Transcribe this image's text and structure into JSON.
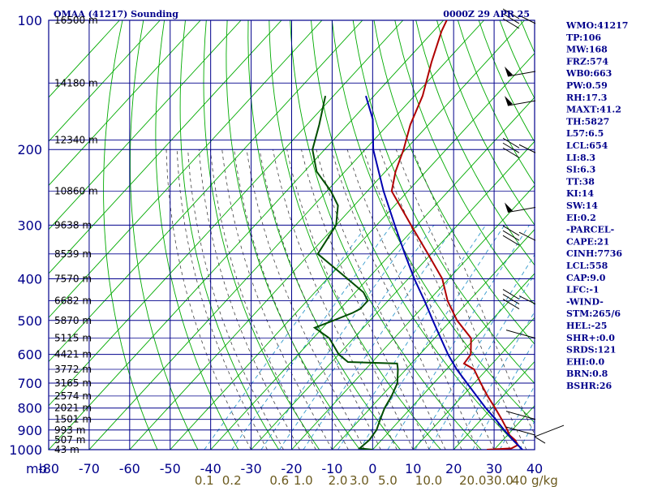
{
  "header": {
    "station": "OMAA (41217) Sounding",
    "time": "0000Z 29 APR 25"
  },
  "indices": [
    "WMO:41217",
    "TP:106",
    "MW:168",
    "FRZ:574",
    "WB0:663",
    "PW:0.59",
    "RH:17.3",
    "MAXT:41.2",
    "TH:5827",
    "L57:6.5",
    "LCL:654",
    "LI:8.3",
    "SI:6.3",
    "TT:38",
    "KI:14",
    "SW:14",
    "EI:0.2",
    "-PARCEL-",
    "CAPE:21",
    "CINH:7736",
    "LCL:558",
    "CAP:9.0",
    "LFC:-1",
    "-WIND-",
    "STM:265/6",
    "HEL:-25",
    "SHR+:0.0",
    "SRDS:121",
    "EHI:0.0",
    "BRN:0.8",
    "BSHR:26"
  ],
  "colors": {
    "grid": "#00008b",
    "dry_adiabat": "#00aa00",
    "isotherm": "#00aa00",
    "moist_adiabat": "#404040",
    "mixing_ratio": "#3399cc",
    "temperature": "#b00000",
    "dewpoint": "#004d00",
    "parcel": "#0000b0"
  },
  "chart_data": {
    "type": "line",
    "diagram": "skew-T log-P",
    "pressure_axis_unit": "mb",
    "pressure_levels": [
      100,
      200,
      300,
      400,
      500,
      600,
      700,
      800,
      900,
      1000
    ],
    "pressure_range": [
      1000,
      100
    ],
    "temperature_ticks": [
      "-80",
      "-70",
      "-60",
      "-50",
      "-40",
      "-30",
      "-20",
      "-10",
      "0",
      "10",
      "20",
      "30",
      "40"
    ],
    "temperature_range": [
      -80,
      40
    ],
    "mixing_ratio_unit": "g/kg",
    "mixing_ratio_labels": [
      "0.1",
      "0.2",
      "0.6",
      "1.0",
      "2.0",
      "3.0",
      "5.0",
      "10.0",
      "20.0",
      "30.0",
      "40"
    ],
    "height_labels": [
      {
        "p": 100,
        "label": "16500 m"
      },
      {
        "p": 140,
        "label": "14180 m"
      },
      {
        "p": 190,
        "label": "12340 m"
      },
      {
        "p": 250,
        "label": "10860 m"
      },
      {
        "p": 300,
        "label": "9638 m"
      },
      {
        "p": 350,
        "label": "8539 m"
      },
      {
        "p": 400,
        "label": "7570 m"
      },
      {
        "p": 450,
        "label": "6682 m"
      },
      {
        "p": 500,
        "label": "5870 m"
      },
      {
        "p": 550,
        "label": "5115 m"
      },
      {
        "p": 600,
        "label": "4421 m"
      },
      {
        "p": 650,
        "label": "3772 m"
      },
      {
        "p": 700,
        "label": "3165 m"
      },
      {
        "p": 750,
        "label": "2574 m"
      },
      {
        "p": 800,
        "label": "2021 m"
      },
      {
        "p": 850,
        "label": "1501 m"
      },
      {
        "p": 900,
        "label": "993 m"
      },
      {
        "p": 950,
        "label": "507 m"
      },
      {
        "p": 1000,
        "label": "43 m"
      }
    ],
    "series": [
      {
        "name": "temperature",
        "points": [
          [
            1000,
            28.2
          ],
          [
            993,
            34.0
          ],
          [
            975,
            34.8
          ],
          [
            950,
            33.0
          ],
          [
            925,
            30.5
          ],
          [
            900,
            28.8
          ],
          [
            850,
            25.0
          ],
          [
            800,
            20.8
          ],
          [
            750,
            16.2
          ],
          [
            700,
            11.6
          ],
          [
            650,
            6.8
          ],
          [
            630,
            3.0
          ],
          [
            600,
            2.6
          ],
          [
            550,
            -1.0
          ],
          [
            500,
            -8.5
          ],
          [
            450,
            -15.3
          ],
          [
            400,
            -21.6
          ],
          [
            350,
            -30.8
          ],
          [
            300,
            -41.5
          ],
          [
            250,
            -54.0
          ],
          [
            225,
            -57.5
          ],
          [
            200,
            -60.5
          ],
          [
            175,
            -64.5
          ],
          [
            150,
            -68.0
          ],
          [
            125,
            -73.5
          ],
          [
            106,
            -78.0
          ],
          [
            100,
            -79.2
          ]
        ]
      },
      {
        "name": "dewpoint",
        "points": [
          [
            1000,
            0.0
          ],
          [
            993,
            -3.5
          ],
          [
            950,
            -3.0
          ],
          [
            900,
            -3.5
          ],
          [
            850,
            -5.0
          ],
          [
            800,
            -6.5
          ],
          [
            750,
            -7.5
          ],
          [
            700,
            -9.0
          ],
          [
            650,
            -12.0
          ],
          [
            630,
            -13.5
          ],
          [
            625,
            -26.0
          ],
          [
            600,
            -30.0
          ],
          [
            550,
            -36.0
          ],
          [
            520,
            -42.0
          ],
          [
            500,
            -39.0
          ],
          [
            480,
            -36.0
          ],
          [
            470,
            -35.0
          ],
          [
            450,
            -35.0
          ],
          [
            430,
            -38.0
          ],
          [
            400,
            -45.0
          ],
          [
            350,
            -58.0
          ],
          [
            300,
            -60.0
          ],
          [
            270,
            -64.0
          ],
          [
            250,
            -69.0
          ],
          [
            225,
            -77.0
          ],
          [
            200,
            -83.0
          ],
          [
            175,
            -87.0
          ],
          [
            150,
            -92.0
          ]
        ]
      },
      {
        "name": "parcel",
        "points": [
          [
            1000,
            37.0
          ],
          [
            950,
            32.5
          ],
          [
            900,
            28.0
          ],
          [
            850,
            23.5
          ],
          [
            800,
            18.5
          ],
          [
            750,
            13.5
          ],
          [
            700,
            8.2
          ],
          [
            650,
            2.5
          ],
          [
            600,
            -3.0
          ],
          [
            550,
            -8.5
          ],
          [
            500,
            -14.5
          ],
          [
            450,
            -21.0
          ],
          [
            400,
            -28.5
          ],
          [
            350,
            -36.5
          ],
          [
            300,
            -45.5
          ],
          [
            250,
            -56.0
          ],
          [
            200,
            -68.0
          ],
          [
            170,
            -75.0
          ],
          [
            150,
            -82.0
          ]
        ]
      }
    ],
    "wind_barbs": [
      {
        "p": 100,
        "type": "flags3"
      },
      {
        "p": 135,
        "type": "pennant2"
      },
      {
        "p": 158,
        "type": "pennant1"
      },
      {
        "p": 200,
        "type": "flags3"
      },
      {
        "p": 280,
        "type": "pennant"
      },
      {
        "p": 320,
        "type": "flags3"
      },
      {
        "p": 450,
        "type": "flags3"
      },
      {
        "p": 550,
        "type": "short"
      },
      {
        "p": 850,
        "type": "short"
      },
      {
        "p": 925,
        "type": "short"
      }
    ]
  }
}
